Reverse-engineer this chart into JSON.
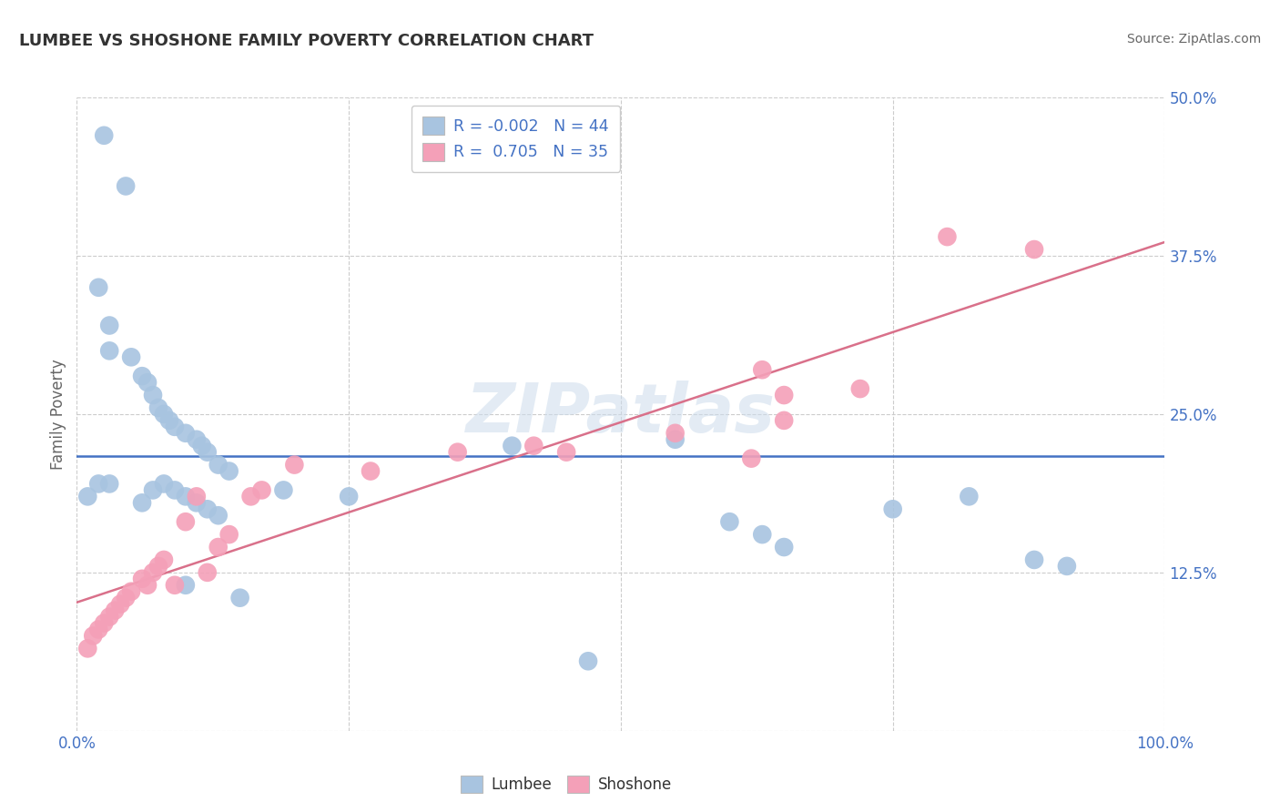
{
  "title": "LUMBEE VS SHOSHONE FAMILY POVERTY CORRELATION CHART",
  "source": "Source: ZipAtlas.com",
  "ylabel": "Family Poverty",
  "xlim": [
    0.0,
    1.0
  ],
  "ylim": [
    0.0,
    0.5
  ],
  "lumbee_R": -0.002,
  "lumbee_N": 44,
  "shoshone_R": 0.705,
  "shoshone_N": 35,
  "lumbee_color": "#a8c4e0",
  "shoshone_color": "#f4a0b8",
  "lumbee_line_color": "#4472c4",
  "shoshone_line_color": "#d9708a",
  "legend_R_color": "#4472c4",
  "lumbee_x": [
    0.025,
    0.045,
    0.02,
    0.03,
    0.03,
    0.05,
    0.06,
    0.065,
    0.07,
    0.075,
    0.08,
    0.085,
    0.09,
    0.1,
    0.11,
    0.115,
    0.12,
    0.13,
    0.14,
    0.02,
    0.03,
    0.01,
    0.06,
    0.07,
    0.08,
    0.09,
    0.1,
    0.11,
    0.12,
    0.13,
    0.19,
    0.25,
    0.4,
    0.55,
    0.6,
    0.63,
    0.65,
    0.75,
    0.82,
    0.88,
    0.91,
    0.47,
    0.15,
    0.1
  ],
  "lumbee_y": [
    0.47,
    0.43,
    0.35,
    0.32,
    0.3,
    0.295,
    0.28,
    0.275,
    0.265,
    0.255,
    0.25,
    0.245,
    0.24,
    0.235,
    0.23,
    0.225,
    0.22,
    0.21,
    0.205,
    0.195,
    0.195,
    0.185,
    0.18,
    0.19,
    0.195,
    0.19,
    0.185,
    0.18,
    0.175,
    0.17,
    0.19,
    0.185,
    0.225,
    0.23,
    0.165,
    0.155,
    0.145,
    0.175,
    0.185,
    0.135,
    0.13,
    0.055,
    0.105,
    0.115
  ],
  "shoshone_x": [
    0.01,
    0.015,
    0.02,
    0.025,
    0.03,
    0.035,
    0.04,
    0.045,
    0.05,
    0.06,
    0.065,
    0.07,
    0.075,
    0.08,
    0.09,
    0.1,
    0.11,
    0.12,
    0.13,
    0.14,
    0.16,
    0.17,
    0.2,
    0.27,
    0.35,
    0.45,
    0.55,
    0.62,
    0.65,
    0.72,
    0.8,
    0.88,
    0.63,
    0.65,
    0.42
  ],
  "shoshone_y": [
    0.065,
    0.075,
    0.08,
    0.085,
    0.09,
    0.095,
    0.1,
    0.105,
    0.11,
    0.12,
    0.115,
    0.125,
    0.13,
    0.135,
    0.115,
    0.165,
    0.185,
    0.125,
    0.145,
    0.155,
    0.185,
    0.19,
    0.21,
    0.205,
    0.22,
    0.22,
    0.235,
    0.215,
    0.245,
    0.27,
    0.39,
    0.38,
    0.285,
    0.265,
    0.225
  ]
}
